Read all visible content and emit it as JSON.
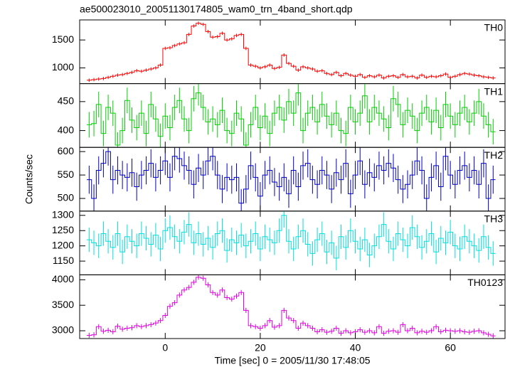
{
  "chart_data": [
    {
      "type": "line",
      "title": "ae500023010_20051130174805_wam0_trn_4band_short.qdp",
      "label": "TH0",
      "color": "#ff0000",
      "error": 30,
      "x": [
        -16,
        -15,
        -14,
        -13,
        -12,
        -11,
        -10,
        -9,
        -8,
        -7,
        -6,
        -5,
        -4,
        -3,
        -2,
        -1,
        0,
        1,
        2,
        3,
        4,
        5,
        6,
        7,
        8,
        9,
        10,
        11,
        12,
        13,
        14,
        15,
        16,
        17,
        18,
        19,
        20,
        21,
        22,
        23,
        24,
        25,
        26,
        27,
        28,
        29,
        30,
        31,
        32,
        33,
        34,
        35,
        36,
        37,
        38,
        39,
        40,
        41,
        42,
        43,
        44,
        45,
        46,
        47,
        48,
        49,
        50,
        51,
        52,
        53,
        54,
        55,
        56,
        57,
        58,
        59,
        60,
        61,
        62,
        63,
        64,
        65,
        66,
        67,
        68,
        69
      ],
      "values": [
        780,
        790,
        800,
        810,
        830,
        850,
        870,
        880,
        900,
        920,
        950,
        940,
        960,
        980,
        1000,
        1050,
        1350,
        1360,
        1400,
        1430,
        1450,
        1600,
        1750,
        1800,
        1780,
        1650,
        1550,
        1560,
        1620,
        1500,
        1520,
        1580,
        1600,
        1350,
        1050,
        1030,
        1000,
        1020,
        1050,
        990,
        1010,
        1230,
        1080,
        1030,
        960,
        1020,
        1000,
        980,
        940,
        950,
        900,
        880,
        920,
        860,
        900,
        870,
        850,
        880,
        830,
        860,
        840,
        870,
        820,
        850,
        860,
        830,
        880,
        840,
        850,
        820,
        870,
        830,
        850,
        840,
        860,
        890,
        830,
        850,
        880,
        900,
        890,
        870,
        860,
        840,
        830,
        820
      ],
      "xlim": [
        -18,
        71.5
      ],
      "xticks": [
        0,
        20,
        40,
        60
      ],
      "ylim": [
        718,
        1859
      ],
      "yticks": [
        1000,
        1500
      ]
    },
    {
      "type": "line",
      "label": "TH1",
      "color": "#00d000",
      "error": 22,
      "x": [
        -16,
        -15,
        -14,
        -13,
        -12,
        -11,
        -10,
        -9,
        -8,
        -7,
        -6,
        -5,
        -4,
        -3,
        -2,
        -1,
        0,
        1,
        2,
        3,
        4,
        5,
        6,
        7,
        8,
        9,
        10,
        11,
        12,
        13,
        14,
        15,
        16,
        17,
        18,
        19,
        20,
        21,
        22,
        23,
        24,
        25,
        26,
        27,
        28,
        29,
        30,
        31,
        32,
        33,
        34,
        35,
        36,
        37,
        38,
        39,
        40,
        41,
        42,
        43,
        44,
        45,
        46,
        47,
        48,
        49,
        50,
        51,
        52,
        53,
        54,
        55,
        56,
        57,
        58,
        59,
        60,
        61,
        62,
        63,
        64,
        65,
        66,
        67,
        68,
        69
      ],
      "values": [
        410,
        412,
        445,
        395,
        440,
        430,
        375,
        400,
        452,
        418,
        405,
        430,
        395,
        445,
        420,
        390,
        425,
        405,
        440,
        452,
        420,
        400,
        455,
        465,
        440,
        415,
        420,
        410,
        435,
        400,
        395,
        430,
        420,
        375,
        410,
        440,
        405,
        425,
        395,
        430,
        440,
        418,
        450,
        430,
        465,
        400,
        430,
        440,
        415,
        445,
        425,
        410,
        430,
        400,
        395,
        440,
        415,
        430,
        460,
        415,
        440,
        430,
        420,
        405,
        455,
        445,
        410,
        435,
        425,
        400,
        430,
        440,
        415,
        435,
        405,
        445,
        425,
        410,
        430,
        440,
        415,
        430,
        450,
        425,
        410,
        398
      ],
      "xlim": [
        -18,
        71.5
      ],
      "xticks": [
        0,
        20,
        40,
        60
      ],
      "ylim": [
        371,
        481
      ],
      "yticks": [
        400,
        450
      ]
    },
    {
      "type": "line",
      "label": "TH2",
      "ylabel": "Counts/sec",
      "color": "#0000c8",
      "error": 30,
      "x": [
        -16,
        -15,
        -14,
        -13,
        -12,
        -11,
        -10,
        -9,
        -8,
        -7,
        -6,
        -5,
        -4,
        -3,
        -2,
        -1,
        0,
        1,
        2,
        3,
        4,
        5,
        6,
        7,
        8,
        9,
        10,
        11,
        12,
        13,
        14,
        15,
        16,
        17,
        18,
        19,
        20,
        21,
        22,
        23,
        24,
        25,
        26,
        27,
        28,
        29,
        30,
        31,
        32,
        33,
        34,
        35,
        36,
        37,
        38,
        39,
        40,
        41,
        42,
        43,
        44,
        45,
        46,
        47,
        48,
        49,
        50,
        51,
        52,
        53,
        54,
        55,
        56,
        57,
        58,
        59,
        60,
        61,
        62,
        63,
        64,
        65,
        66,
        67,
        68,
        69
      ],
      "values": [
        540,
        500,
        560,
        575,
        600,
        540,
        560,
        550,
        545,
        555,
        525,
        550,
        560,
        575,
        545,
        560,
        580,
        545,
        590,
        585,
        570,
        560,
        530,
        565,
        550,
        580,
        590,
        550,
        520,
        545,
        540,
        545,
        490,
        520,
        570,
        545,
        505,
        550,
        560,
        535,
        525,
        545,
        510,
        560,
        525,
        570,
        575,
        540,
        530,
        560,
        550,
        520,
        555,
        540,
        575,
        510,
        550,
        580,
        530,
        555,
        545,
        570,
        560,
        575,
        565,
        540,
        520,
        530,
        550,
        580,
        560,
        500,
        545,
        570,
        525,
        590,
        550,
        530,
        560,
        570,
        545,
        560,
        530,
        575,
        500,
        540
      ],
      "xlim": [
        -18,
        71.5
      ],
      "xticks": [
        0,
        20,
        40,
        60
      ],
      "ylim": [
        473,
        609
      ],
      "yticks": [
        500,
        550,
        600
      ]
    },
    {
      "type": "line",
      "label": "TH3",
      "color": "#00e0e0",
      "error": 40,
      "x": [
        -16,
        -15,
        -14,
        -13,
        -12,
        -11,
        -10,
        -9,
        -8,
        -7,
        -6,
        -5,
        -4,
        -3,
        -2,
        -1,
        0,
        1,
        2,
        3,
        4,
        5,
        6,
        7,
        8,
        9,
        10,
        11,
        12,
        13,
        14,
        15,
        16,
        17,
        18,
        19,
        20,
        21,
        22,
        23,
        24,
        25,
        26,
        27,
        28,
        29,
        30,
        31,
        32,
        33,
        34,
        35,
        36,
        37,
        38,
        39,
        40,
        41,
        42,
        43,
        44,
        45,
        46,
        47,
        48,
        49,
        50,
        51,
        52,
        53,
        54,
        55,
        56,
        57,
        58,
        59,
        60,
        61,
        62,
        63,
        64,
        65,
        66,
        67,
        68,
        69
      ],
      "values": [
        1220,
        1210,
        1200,
        1240,
        1215,
        1195,
        1240,
        1180,
        1230,
        1215,
        1200,
        1240,
        1225,
        1205,
        1235,
        1190,
        1250,
        1260,
        1230,
        1215,
        1245,
        1270,
        1210,
        1240,
        1205,
        1225,
        1195,
        1240,
        1250,
        1185,
        1220,
        1210,
        1235,
        1200,
        1215,
        1240,
        1190,
        1230,
        1220,
        1210,
        1250,
        1300,
        1215,
        1190,
        1230,
        1250,
        1205,
        1175,
        1220,
        1240,
        1180,
        1210,
        1160,
        1230,
        1195,
        1250,
        1215,
        1190,
        1220,
        1170,
        1200,
        1230,
        1270,
        1215,
        1190,
        1240,
        1220,
        1200,
        1260,
        1230,
        1195,
        1215,
        1240,
        1180,
        1225,
        1210,
        1245,
        1200,
        1190,
        1230,
        1215,
        1200,
        1185,
        1230,
        1195,
        1175
      ],
      "xlim": [
        -18,
        71.5
      ],
      "xticks": [
        0,
        20,
        40,
        60
      ],
      "ylim": [
        1105,
        1314
      ],
      "yticks": [
        1150,
        1200,
        1250,
        1300
      ]
    },
    {
      "type": "line",
      "label": "TH0123",
      "xlabel": "Time [sec] 0 = 2005/11/30 17:48:05",
      "color": "#e000e0",
      "error": 50,
      "x": [
        -16,
        -15,
        -14,
        -13,
        -12,
        -11,
        -10,
        -9,
        -8,
        -7,
        -6,
        -5,
        -4,
        -3,
        -2,
        -1,
        0,
        1,
        2,
        3,
        4,
        5,
        6,
        7,
        8,
        9,
        10,
        11,
        12,
        13,
        14,
        15,
        16,
        17,
        18,
        19,
        20,
        21,
        22,
        23,
        24,
        25,
        26,
        27,
        28,
        29,
        30,
        31,
        32,
        33,
        34,
        35,
        36,
        37,
        38,
        39,
        40,
        41,
        42,
        43,
        44,
        45,
        46,
        47,
        48,
        49,
        50,
        51,
        52,
        53,
        54,
        55,
        56,
        57,
        58,
        59,
        60,
        61,
        62,
        63,
        64,
        65,
        66,
        67,
        68,
        69
      ],
      "values": [
        2910,
        2920,
        3080,
        2990,
        3010,
        2980,
        3090,
        3030,
        3050,
        3060,
        3100,
        3080,
        3100,
        3120,
        3150,
        3200,
        3300,
        3480,
        3550,
        3700,
        3800,
        3850,
        3950,
        4050,
        4030,
        3900,
        3750,
        3700,
        3800,
        3650,
        3620,
        3680,
        3750,
        3400,
        3100,
        3080,
        3050,
        3100,
        3200,
        3070,
        3100,
        3400,
        3250,
        3200,
        3050,
        3150,
        3100,
        3050,
        2980,
        3020,
        2970,
        2990,
        3050,
        2950,
        3000,
        2960,
        2980,
        3020,
        2970,
        3000,
        2960,
        3080,
        2950,
        2990,
        3000,
        2970,
        3120,
        3000,
        3050,
        2960,
        2990,
        2970,
        3000,
        3080,
        2980,
        3010,
        3000,
        2990,
        3000,
        2980,
        2970,
        2990,
        3000,
        2960,
        2930,
        2900
      ],
      "xlim": [
        -18,
        71.5
      ],
      "xticks": [
        0,
        20,
        40,
        60
      ],
      "ylim": [
        2847,
        4097
      ],
      "yticks": [
        3000,
        3500,
        4000
      ]
    }
  ]
}
